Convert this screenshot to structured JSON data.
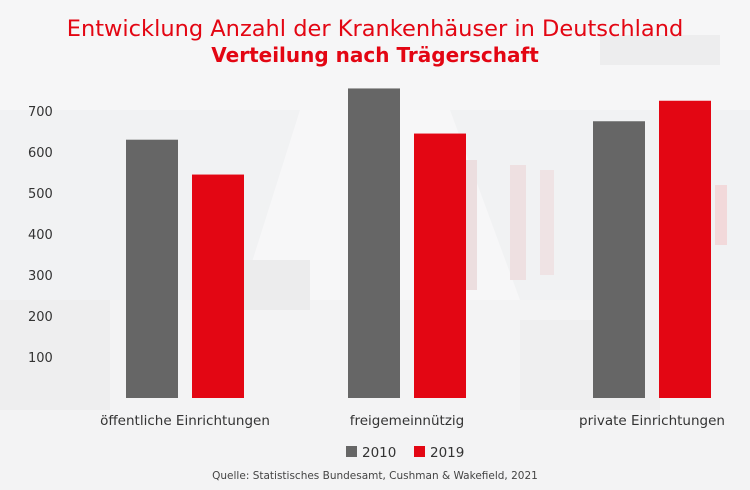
{
  "title": "Entwicklung Anzahl der Krankenhäuser in Deutschland",
  "subtitle": "Verteilung nach Trägerschaft",
  "source": "Quelle: Statistisches Bundesamt, Cushman & Wakefield, 2021",
  "colors": {
    "accent": "#e30613",
    "series_2010": "#666666",
    "series_2019": "#e30613"
  },
  "chart_data": {
    "type": "bar",
    "title": "Entwicklung Anzahl der Krankenhäuser in Deutschland",
    "subtitle": "Verteilung nach Trägerschaft",
    "categories": [
      "öffentliche Einrichtungen",
      "freigemeinnützig",
      "private Einrichtungen"
    ],
    "series": [
      {
        "name": "2010",
        "color": "#666666",
        "values": [
          630,
          755,
          675
        ]
      },
      {
        "name": "2019",
        "color": "#e30613",
        "values": [
          545,
          645,
          725
        ]
      }
    ],
    "yticks": [
      100,
      200,
      300,
      400,
      500,
      600,
      700
    ],
    "ylim": [
      0,
      800
    ],
    "xlabel": "",
    "ylabel": "",
    "grid": false,
    "legend": "bottom-center"
  }
}
